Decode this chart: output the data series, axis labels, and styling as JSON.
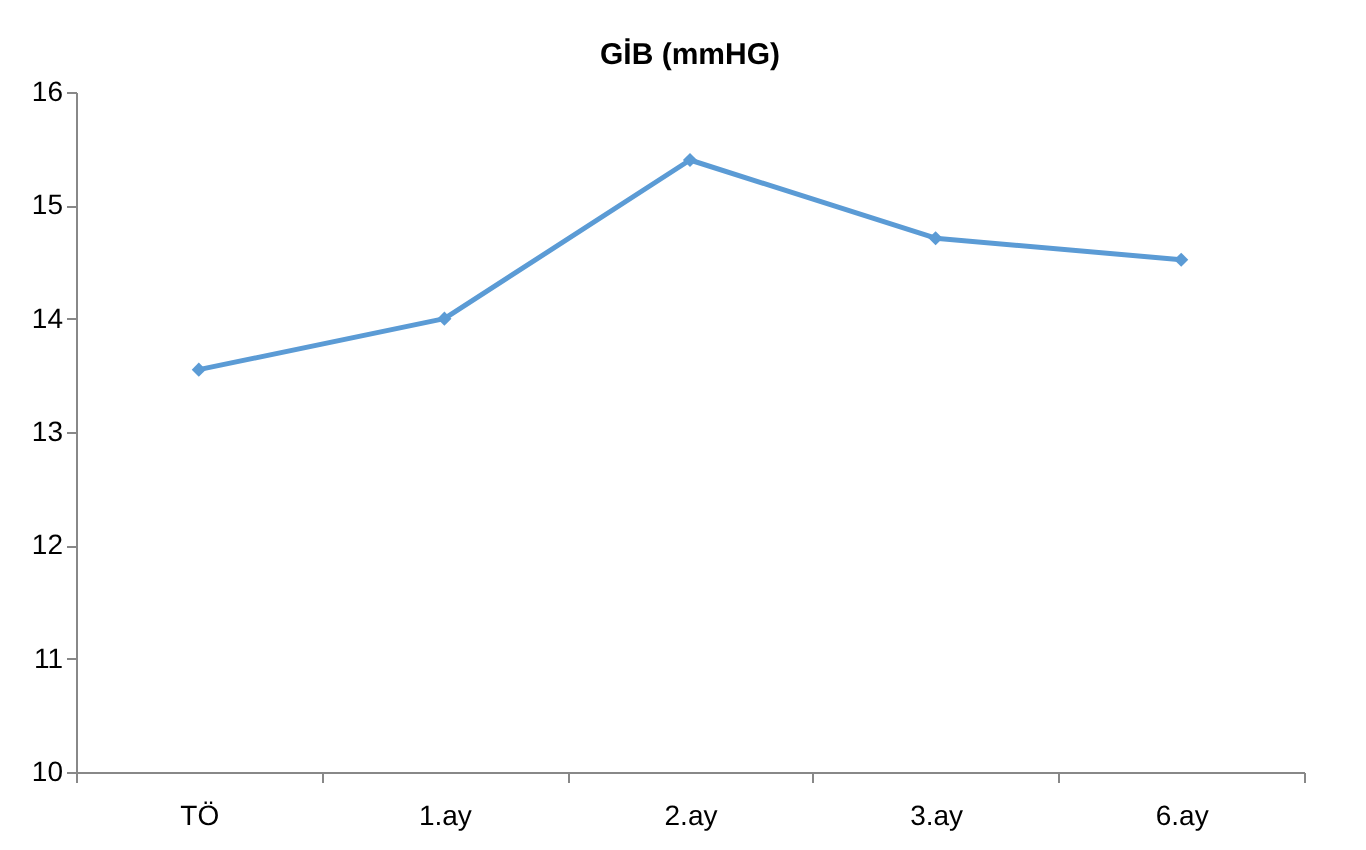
{
  "chart_data": {
    "type": "line",
    "title": "GİB (mmHG)",
    "categories": [
      "TÖ",
      "1.ay",
      "2.ay",
      "3.ay",
      "6.ay"
    ],
    "series": [
      {
        "color": "#5b9bd5",
        "values": [
          13.55,
          14.0,
          15.4,
          14.71,
          14.52
        ]
      }
    ],
    "ylim": [
      10,
      16
    ],
    "yticks": [
      10,
      11,
      12,
      13,
      14,
      15,
      16
    ],
    "grid": false,
    "marker": "diamond",
    "line_style": "solid"
  }
}
